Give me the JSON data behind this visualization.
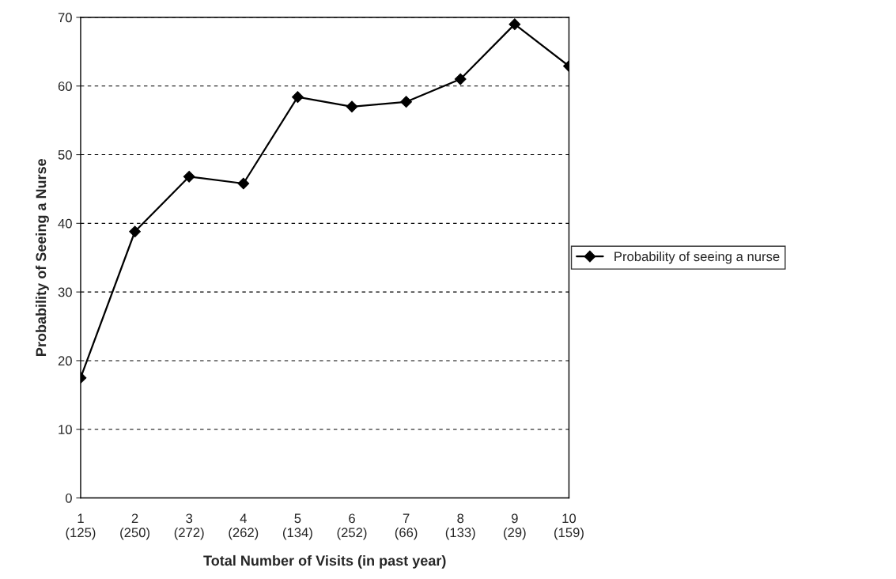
{
  "chart_data": {
    "type": "line",
    "xlabel": "Total Number of Visits (in past year)",
    "ylabel": "Probability of Seeing a Nurse",
    "categories": [
      "1\n(125)",
      "2\n(250)",
      "3\n(272)",
      "4\n(262)",
      "5\n(134)",
      "6\n(252)",
      "7\n(66)",
      "8\n(133)",
      "9\n(29)",
      "10\n(159)"
    ],
    "series": [
      {
        "name": "Probability of seeing a nurse",
        "color": "#000000",
        "values": [
          17.5,
          38.8,
          46.8,
          45.8,
          58.4,
          57.0,
          57.7,
          61.0,
          69.0,
          62.9
        ]
      }
    ],
    "ylim": [
      0,
      70
    ],
    "yticks": [
      0,
      10,
      20,
      30,
      40,
      50,
      60,
      70
    ],
    "grid": "y",
    "legend": "right",
    "marker": "diamond",
    "line_style": "solid"
  }
}
